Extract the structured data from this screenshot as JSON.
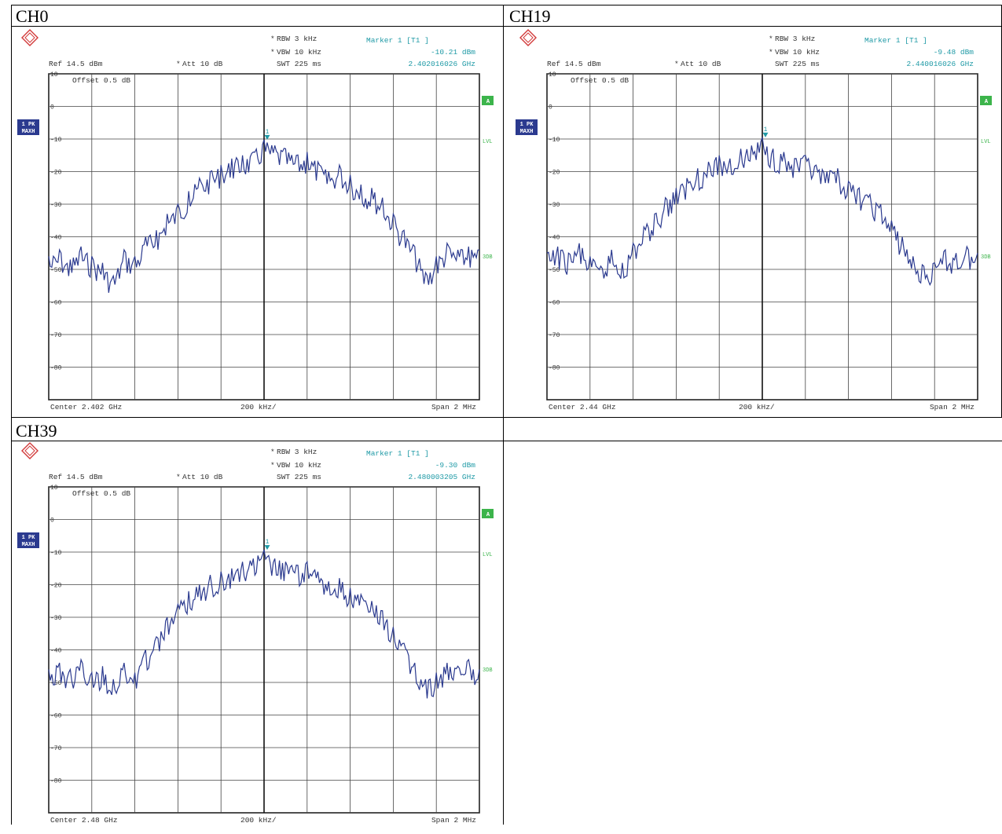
{
  "table": {
    "cells": [
      {
        "title": "CH0"
      },
      {
        "title": "CH19"
      },
      {
        "title": "CH39"
      },
      {
        "title": ""
      }
    ]
  },
  "chart_data": [
    {
      "type": "line",
      "title": "CH0",
      "settings": {
        "rbw": "RBW 3 kHz",
        "vbw": "VBW 10 kHz",
        "swt": "SWT 225 ms",
        "ref": "Ref 14.5 dBm",
        "att": "Att 10 dB",
        "offset": "Offset 0.5 dB",
        "trace_label": [
          "1 PK",
          "MAXH"
        ],
        "side_labels": {
          "a": "A",
          "lvl": "LVL",
          "three_db": "3DB"
        }
      },
      "marker": {
        "label": "Marker 1 [T1 ]",
        "level": "-10.21 dBm",
        "freq": "2.402016026 GHz",
        "number": "1",
        "x_mhz": 2.402016,
        "y_dbm": -10.21
      },
      "footer": {
        "center": "Center 2.402 GHz",
        "per_div": "200 kHz/",
        "span": "Span 2 MHz"
      },
      "y_ticks": [
        "10",
        "0",
        "-10",
        "-20",
        "-30",
        "-40",
        "-50",
        "-60",
        "-70",
        "-80"
      ],
      "ylim": [
        -90,
        10
      ],
      "xlim_mhz": [
        2401.0,
        2403.0
      ],
      "series": [
        {
          "color": "#2b3a8f",
          "x": [
            2401.0,
            2401.05,
            2401.1,
            2401.15,
            2401.2,
            2401.25,
            2401.3,
            2401.35,
            2401.4,
            2401.45,
            2401.5,
            2401.55,
            2401.6,
            2401.65,
            2401.7,
            2401.75,
            2401.8,
            2401.85,
            2401.9,
            2401.95,
            2402.0,
            2402.05,
            2402.1,
            2402.15,
            2402.2,
            2402.25,
            2402.3,
            2402.35,
            2402.4,
            2402.45,
            2402.5,
            2402.55,
            2402.6,
            2402.65,
            2402.7,
            2402.75,
            2402.8,
            2402.85,
            2402.9,
            2402.95,
            2403.0
          ],
          "y": [
            -46,
            -44,
            -47,
            -43,
            -46,
            -48,
            -52,
            -44,
            -46,
            -40,
            -38,
            -33,
            -30,
            -26,
            -22,
            -20,
            -18,
            -16,
            -15,
            -14,
            -10.2,
            -12,
            -13,
            -15,
            -14,
            -17,
            -20,
            -18,
            -21,
            -24,
            -25,
            -28,
            -33,
            -38,
            -43,
            -51,
            -46,
            -42,
            -44,
            -43,
            -44
          ]
        }
      ]
    },
    {
      "type": "line",
      "title": "CH19",
      "settings": {
        "rbw": "RBW 3 kHz",
        "vbw": "VBW 10 kHz",
        "swt": "SWT 225 ms",
        "ref": "Ref 14.5 dBm",
        "att": "Att 10 dB",
        "offset": "Offset 0.5 dB",
        "trace_label": [
          "1 PK",
          "MAXH"
        ],
        "side_labels": {
          "a": "A",
          "lvl": "LVL",
          "three_db": "3DB"
        }
      },
      "marker": {
        "label": "Marker 1 [T1 ]",
        "level": "-9.48 dBm",
        "freq": "2.440016026 GHz",
        "number": "1",
        "x_mhz": 2.440016,
        "y_dbm": -9.48
      },
      "footer": {
        "center": "Center 2.44 GHz",
        "per_div": "200 kHz/",
        "span": "Span 2 MHz"
      },
      "y_ticks": [
        "10",
        "0",
        "-10",
        "-20",
        "-30",
        "-40",
        "-50",
        "-60",
        "-70",
        "-80"
      ],
      "ylim": [
        -90,
        10
      ],
      "xlim_mhz": [
        2439.0,
        2441.0
      ],
      "series": [
        {
          "color": "#2b3a8f",
          "x": [
            2439.0,
            2439.05,
            2439.1,
            2439.15,
            2439.2,
            2439.25,
            2439.3,
            2439.35,
            2439.4,
            2439.45,
            2439.5,
            2439.55,
            2439.6,
            2439.65,
            2439.7,
            2439.75,
            2439.8,
            2439.85,
            2439.9,
            2439.95,
            2440.0,
            2440.05,
            2440.1,
            2440.15,
            2440.2,
            2440.25,
            2440.3,
            2440.35,
            2440.4,
            2440.45,
            2440.5,
            2440.55,
            2440.6,
            2440.65,
            2440.7,
            2440.75,
            2440.8,
            2440.85,
            2440.9,
            2440.95,
            2441.0
          ],
          "y": [
            -45,
            -43,
            -45,
            -42,
            -46,
            -49,
            -44,
            -48,
            -42,
            -37,
            -33,
            -28,
            -25,
            -22,
            -19,
            -17,
            -15,
            -16,
            -13,
            -12,
            -9.5,
            -13,
            -14,
            -16,
            -15,
            -18,
            -20,
            -19,
            -23,
            -25,
            -27,
            -30,
            -35,
            -40,
            -46,
            -49,
            -48,
            -44,
            -45,
            -43,
            -45
          ]
        }
      ]
    },
    {
      "type": "line",
      "title": "CH39",
      "settings": {
        "rbw": "RBW 3 kHz",
        "vbw": "VBW 10 kHz",
        "swt": "SWT 225 ms",
        "ref": "Ref 14.5 dBm",
        "att": "Att 10 dB",
        "offset": "Offset 0.5 dB",
        "trace_label": [
          "1 PK",
          "MAXH"
        ],
        "side_labels": {
          "a": "A",
          "lvl": "LVL",
          "three_db": "3DB"
        }
      },
      "marker": {
        "label": "Marker 1 [T1 ]",
        "level": "-9.30 dBm",
        "freq": "2.480003205 GHz",
        "number": "1",
        "x_mhz": 2.480003,
        "y_dbm": -9.3
      },
      "footer": {
        "center": "Center 2.48 GHz",
        "per_div": "200 kHz/",
        "span": "Span 2 MHz"
      },
      "y_ticks": [
        "10",
        "0",
        "-10",
        "-20",
        "-30",
        "-40",
        "-50",
        "-60",
        "-70",
        "-80"
      ],
      "ylim": [
        -90,
        10
      ],
      "xlim_mhz": [
        2479.0,
        2481.0
      ],
      "series": [
        {
          "color": "#2b3a8f",
          "x": [
            2479.0,
            2479.05,
            2479.1,
            2479.15,
            2479.2,
            2479.25,
            2479.3,
            2479.35,
            2479.4,
            2479.45,
            2479.5,
            2479.55,
            2479.6,
            2479.65,
            2479.7,
            2479.75,
            2479.8,
            2479.85,
            2479.9,
            2479.95,
            2480.0,
            2480.05,
            2480.1,
            2480.15,
            2480.2,
            2480.25,
            2480.3,
            2480.35,
            2480.4,
            2480.45,
            2480.5,
            2480.55,
            2480.6,
            2480.65,
            2480.7,
            2480.75,
            2480.8,
            2480.85,
            2480.9,
            2480.95,
            2481.0
          ],
          "y": [
            -46,
            -44,
            -46,
            -43,
            -47,
            -45,
            -49,
            -44,
            -47,
            -40,
            -36,
            -30,
            -26,
            -22,
            -20,
            -17,
            -16,
            -15,
            -13,
            -12,
            -9.3,
            -12,
            -13,
            -14,
            -13,
            -16,
            -19,
            -18,
            -21,
            -23,
            -25,
            -28,
            -33,
            -38,
            -44,
            -49,
            -47,
            -44,
            -45,
            -43,
            -46
          ]
        }
      ]
    }
  ]
}
